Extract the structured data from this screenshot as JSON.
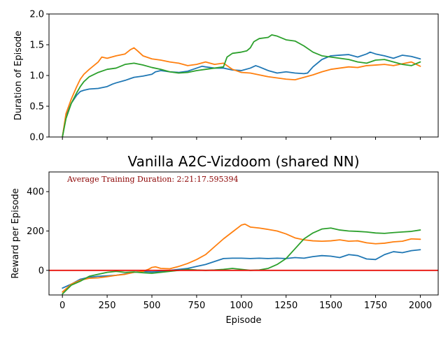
{
  "chart_data": [
    {
      "type": "line",
      "title": "",
      "xlabel": "",
      "ylabel": "Duration of Episode",
      "xlim": [
        -75,
        2100
      ],
      "ylim": [
        0,
        2.0
      ],
      "xticks": [
        0,
        250,
        500,
        750,
        1000,
        1250,
        1500,
        1750,
        2000
      ],
      "show_xtick_labels": false,
      "yticks": [
        0.0,
        0.5,
        1.0,
        1.5,
        2.0
      ],
      "ytick_labels": [
        "0.0",
        "0.5",
        "1.0",
        "1.5",
        "2.0"
      ],
      "grid": false,
      "series": [
        {
          "color": "#1f77b4",
          "x": [
            0,
            20,
            50,
            80,
            100,
            120,
            150,
            200,
            250,
            280,
            300,
            350,
            380,
            400,
            450,
            500,
            520,
            550,
            600,
            650,
            700,
            750,
            780,
            800,
            850,
            900,
            950,
            1000,
            1050,
            1080,
            1100,
            1150,
            1200,
            1250,
            1300,
            1350,
            1370,
            1400,
            1450,
            1500,
            1550,
            1600,
            1650,
            1700,
            1720,
            1750,
            1800,
            1850,
            1900,
            1950,
            2000
          ],
          "y": [
            0.0,
            0.35,
            0.55,
            0.68,
            0.74,
            0.76,
            0.78,
            0.79,
            0.82,
            0.86,
            0.88,
            0.92,
            0.95,
            0.97,
            0.99,
            1.02,
            1.06,
            1.08,
            1.06,
            1.05,
            1.07,
            1.12,
            1.15,
            1.14,
            1.12,
            1.12,
            1.09,
            1.08,
            1.12,
            1.16,
            1.14,
            1.08,
            1.04,
            1.06,
            1.04,
            1.03,
            1.04,
            1.14,
            1.26,
            1.32,
            1.33,
            1.34,
            1.3,
            1.35,
            1.38,
            1.35,
            1.32,
            1.28,
            1.33,
            1.31,
            1.27
          ]
        },
        {
          "color": "#ff7f0e",
          "x": [
            0,
            20,
            50,
            80,
            100,
            120,
            150,
            200,
            220,
            250,
            300,
            350,
            380,
            400,
            420,
            450,
            500,
            550,
            600,
            650,
            700,
            750,
            800,
            850,
            900,
            950,
            1000,
            1050,
            1100,
            1150,
            1200,
            1250,
            1300,
            1350,
            1400,
            1450,
            1500,
            1550,
            1600,
            1650,
            1700,
            1750,
            1800,
            1850,
            1900,
            1950,
            2000
          ],
          "y": [
            0.0,
            0.38,
            0.62,
            0.82,
            0.94,
            1.02,
            1.1,
            1.22,
            1.3,
            1.28,
            1.32,
            1.35,
            1.42,
            1.45,
            1.4,
            1.32,
            1.27,
            1.25,
            1.22,
            1.2,
            1.16,
            1.18,
            1.22,
            1.18,
            1.2,
            1.1,
            1.05,
            1.04,
            1.01,
            0.98,
            0.96,
            0.94,
            0.93,
            0.97,
            1.01,
            1.06,
            1.1,
            1.12,
            1.14,
            1.13,
            1.16,
            1.17,
            1.18,
            1.16,
            1.19,
            1.22,
            1.15
          ]
        },
        {
          "color": "#2ca02c",
          "x": [
            0,
            20,
            50,
            80,
            100,
            120,
            150,
            200,
            250,
            300,
            350,
            400,
            450,
            500,
            550,
            600,
            650,
            700,
            750,
            800,
            850,
            900,
            920,
            950,
            1000,
            1030,
            1050,
            1070,
            1100,
            1150,
            1170,
            1200,
            1250,
            1300,
            1350,
            1400,
            1450,
            1500,
            1550,
            1600,
            1650,
            1700,
            1750,
            1800,
            1850,
            1900,
            1950,
            2000
          ],
          "y": [
            0.0,
            0.3,
            0.55,
            0.72,
            0.82,
            0.9,
            0.98,
            1.05,
            1.1,
            1.12,
            1.18,
            1.2,
            1.17,
            1.13,
            1.1,
            1.06,
            1.04,
            1.05,
            1.08,
            1.1,
            1.12,
            1.14,
            1.3,
            1.36,
            1.38,
            1.4,
            1.45,
            1.55,
            1.6,
            1.62,
            1.66,
            1.64,
            1.58,
            1.56,
            1.48,
            1.38,
            1.32,
            1.3,
            1.28,
            1.26,
            1.22,
            1.2,
            1.25,
            1.26,
            1.22,
            1.18,
            1.16,
            1.22
          ]
        }
      ]
    },
    {
      "type": "line",
      "title": "Vanilla A2C-Vizdoom (shared NN)",
      "annotation": "Average Training Duration: 2:21:17.595394",
      "xlabel": "Episode",
      "ylabel": "Reward per Episode",
      "xlim": [
        -75,
        2100
      ],
      "ylim": [
        -125,
        500
      ],
      "xticks": [
        0,
        250,
        500,
        750,
        1000,
        1250,
        1500,
        1750,
        2000
      ],
      "xtick_labels": [
        "0",
        "250",
        "500",
        "750",
        "1000",
        "1250",
        "1500",
        "1750",
        "2000"
      ],
      "show_xtick_labels": true,
      "yticks": [
        0,
        200,
        400
      ],
      "ytick_labels": [
        "0",
        "200",
        "400"
      ],
      "grid": false,
      "hline": {
        "y": 0,
        "color": "#e8120c"
      },
      "series": [
        {
          "color": "#1f77b4",
          "x": [
            0,
            50,
            100,
            150,
            200,
            250,
            300,
            350,
            400,
            450,
            500,
            550,
            600,
            650,
            700,
            750,
            800,
            850,
            900,
            950,
            1000,
            1050,
            1100,
            1150,
            1200,
            1250,
            1300,
            1350,
            1400,
            1450,
            1500,
            1550,
            1600,
            1650,
            1700,
            1750,
            1800,
            1850,
            1900,
            1950,
            2000
          ],
          "y": [
            -90,
            -70,
            -45,
            -35,
            -30,
            -28,
            -25,
            -18,
            -10,
            -5,
            -8,
            -5,
            0,
            5,
            10,
            20,
            30,
            45,
            60,
            62,
            62,
            60,
            62,
            60,
            62,
            60,
            65,
            62,
            70,
            75,
            72,
            65,
            80,
            75,
            58,
            55,
            80,
            95,
            90,
            100,
            105
          ]
        },
        {
          "color": "#ff7f0e",
          "x": [
            0,
            50,
            100,
            150,
            200,
            250,
            300,
            350,
            400,
            450,
            480,
            500,
            520,
            550,
            600,
            650,
            700,
            750,
            800,
            850,
            900,
            950,
            1000,
            1020,
            1050,
            1100,
            1150,
            1200,
            1250,
            1300,
            1350,
            1400,
            1450,
            1500,
            1550,
            1600,
            1650,
            1700,
            1750,
            1800,
            1850,
            1900,
            1950,
            2000
          ],
          "y": [
            -110,
            -70,
            -50,
            -40,
            -38,
            -32,
            -25,
            -20,
            -10,
            -5,
            5,
            15,
            18,
            10,
            8,
            20,
            35,
            55,
            80,
            120,
            160,
            195,
            230,
            235,
            220,
            215,
            208,
            200,
            185,
            165,
            155,
            150,
            148,
            150,
            155,
            148,
            150,
            140,
            135,
            138,
            145,
            148,
            160,
            158
          ]
        },
        {
          "color": "#2ca02c",
          "x": [
            0,
            50,
            100,
            150,
            200,
            250,
            300,
            350,
            400,
            450,
            500,
            550,
            600,
            650,
            700,
            750,
            800,
            850,
            900,
            950,
            1000,
            1050,
            1100,
            1150,
            1200,
            1250,
            1300,
            1350,
            1400,
            1450,
            1500,
            1550,
            1600,
            1650,
            1700,
            1750,
            1800,
            1850,
            1900,
            1950,
            2000
          ],
          "y": [
            -120,
            -75,
            -55,
            -30,
            -20,
            -10,
            -5,
            -10,
            -8,
            -12,
            -15,
            -10,
            -5,
            0,
            5,
            2,
            0,
            2,
            5,
            10,
            5,
            0,
            2,
            10,
            30,
            60,
            110,
            160,
            190,
            210,
            215,
            205,
            200,
            198,
            195,
            190,
            188,
            192,
            195,
            198,
            205
          ]
        }
      ]
    }
  ]
}
